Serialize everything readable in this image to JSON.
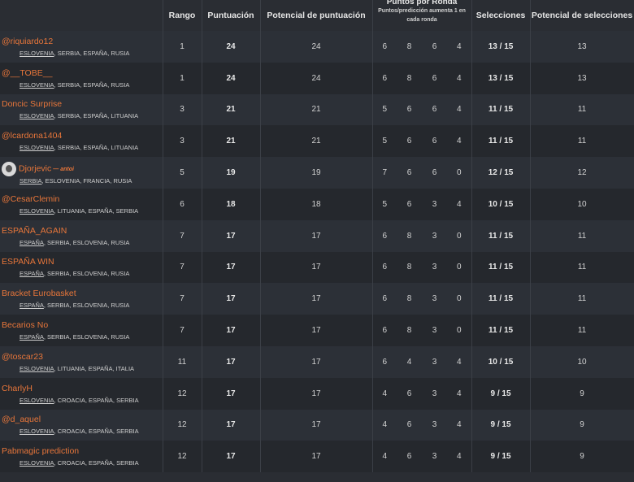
{
  "headers": {
    "rank": "Rango",
    "score": "Puntuación",
    "potential_score": "Potencial de puntuación",
    "rounds_title": "Puntos por Ronda",
    "rounds_sub": "Puntos/predicción aumenta 1 en cada ronda",
    "picks": "Selecciones",
    "potential_picks": "Potencial de selecciones"
  },
  "rows": [
    {
      "name": "@riquiardo12",
      "t1": "ESLOVENIA",
      "t2": ", SERBIA, ESPAÑA, RUSIA",
      "rank": "1",
      "score": "24",
      "pot": "24",
      "r1": "6",
      "r2": "8",
      "r3": "6",
      "r4": "4",
      "picks": "13 / 15",
      "potpicks": "13"
    },
    {
      "name": "@__TOBE__",
      "t1": "ESLOVENIA",
      "t2": ", SERBIA, ESPAÑA, RUSIA",
      "rank": "1",
      "score": "24",
      "pot": "24",
      "r1": "6",
      "r2": "8",
      "r3": "6",
      "r4": "4",
      "picks": "13 / 15",
      "potpicks": "13"
    },
    {
      "name": "Doncic Surprise",
      "t1": "ESLOVENIA",
      "t2": ", SERBIA, ESPAÑA, LITUANIA",
      "rank": "3",
      "score": "21",
      "pot": "21",
      "r1": "5",
      "r2": "6",
      "r3": "6",
      "r4": "4",
      "picks": "11 / 15",
      "potpicks": "11"
    },
    {
      "name": "@lcardona1404",
      "t1": "ESLOVENIA",
      "t2": ", SERBIA, ESPAÑA, LITUANIA",
      "rank": "3",
      "score": "21",
      "pot": "21",
      "r1": "5",
      "r2": "6",
      "r3": "6",
      "r4": "4",
      "picks": "11 / 15",
      "potpicks": "11"
    },
    {
      "name": "Djorjevic",
      "owner": "— antoi",
      "t1": "SERBIA",
      "t2": ", ESLOVENIA, FRANCIA, RUSIA",
      "rank": "5",
      "score": "19",
      "pot": "19",
      "r1": "7",
      "r2": "6",
      "r3": "6",
      "r4": "0",
      "picks": "12 / 15",
      "potpicks": "12",
      "avatar": true
    },
    {
      "name": "@CesarClemin",
      "t1": "ESLOVENIA",
      "t2": ", LITUANIA, ESPAÑA, SERBIA",
      "rank": "6",
      "score": "18",
      "pot": "18",
      "r1": "5",
      "r2": "6",
      "r3": "3",
      "r4": "4",
      "picks": "10 / 15",
      "potpicks": "10"
    },
    {
      "name": "ESPAÑA_AGAIN",
      "t1": "ESPAÑA",
      "t2": ", SERBIA, ESLOVENIA, RUSIA",
      "rank": "7",
      "score": "17",
      "pot": "17",
      "r1": "6",
      "r2": "8",
      "r3": "3",
      "r4": "0",
      "picks": "11 / 15",
      "potpicks": "11"
    },
    {
      "name": "ESPAÑA WIN",
      "t1": "ESPAÑA",
      "t2": ", SERBIA, ESLOVENIA, RUSIA",
      "rank": "7",
      "score": "17",
      "pot": "17",
      "r1": "6",
      "r2": "8",
      "r3": "3",
      "r4": "0",
      "picks": "11 / 15",
      "potpicks": "11"
    },
    {
      "name": "Bracket Eurobasket",
      "t1": "ESPAÑA",
      "t2": ", SERBIA, ESLOVENIA, RUSIA",
      "rank": "7",
      "score": "17",
      "pot": "17",
      "r1": "6",
      "r2": "8",
      "r3": "3",
      "r4": "0",
      "picks": "11 / 15",
      "potpicks": "11"
    },
    {
      "name": "Becarios No",
      "t1": "ESPAÑA",
      "t2": ", SERBIA, ESLOVENIA, RUSIA",
      "rank": "7",
      "score": "17",
      "pot": "17",
      "r1": "6",
      "r2": "8",
      "r3": "3",
      "r4": "0",
      "picks": "11 / 15",
      "potpicks": "11"
    },
    {
      "name": "@toscar23",
      "t1": "ESLOVENIA",
      "t2": ", LITUANIA, ESPAÑA, ITALIA",
      "rank": "11",
      "score": "17",
      "pot": "17",
      "r1": "6",
      "r2": "4",
      "r3": "3",
      "r4": "4",
      "picks": "10 / 15",
      "potpicks": "10"
    },
    {
      "name": "CharlyH",
      "t1": "ESLOVENIA",
      "t2": ", CROACIA, ESPAÑA, SERBIA",
      "rank": "12",
      "score": "17",
      "pot": "17",
      "r1": "4",
      "r2": "6",
      "r3": "3",
      "r4": "4",
      "picks": "9 / 15",
      "potpicks": "9"
    },
    {
      "name": "@d_aquel",
      "t1": "ESLOVENIA",
      "t2": ", CROACIA, ESPAÑA, SERBIA",
      "rank": "12",
      "score": "17",
      "pot": "17",
      "r1": "4",
      "r2": "6",
      "r3": "3",
      "r4": "4",
      "picks": "9 / 15",
      "potpicks": "9"
    },
    {
      "name": "Pabmagic prediction",
      "t1": "ESLOVENIA",
      "t2": ", CROACIA, ESPAÑA, SERBIA",
      "rank": "12",
      "score": "17",
      "pot": "17",
      "r1": "4",
      "r2": "6",
      "r3": "3",
      "r4": "4",
      "picks": "9 / 15",
      "potpicks": "9"
    }
  ]
}
